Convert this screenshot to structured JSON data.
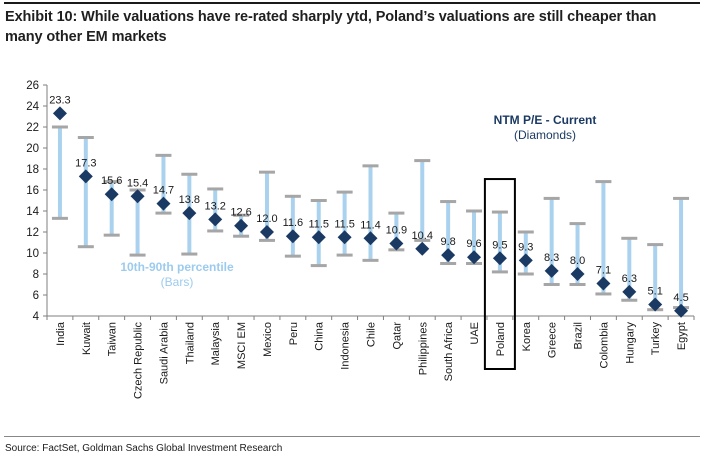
{
  "title": "Exhibit 10: While valuations have re-rated sharply ytd, Poland’s valuations are still cheaper than many other EM markets",
  "source": "Source: FactSet, Goldman Sachs Global Investment Research",
  "colors": {
    "bar": "#aad2ee",
    "cap": "#a6a6a6",
    "diamond": "#1b3a63",
    "highlight_box": "#000000",
    "title": "#1f1f1f"
  },
  "chart_data": {
    "type": "range-bar with markers",
    "ylim": [
      4,
      26
    ],
    "yticks": [
      4,
      6,
      8,
      10,
      12,
      14,
      16,
      18,
      20,
      22,
      24,
      26
    ],
    "grid": false,
    "highlight": "Poland",
    "annotations": {
      "markers_title": "NTM P/E - Current",
      "markers_sub": "(Diamonds)",
      "bars_title": "10th-90th percentile",
      "bars_sub": "(Bars)"
    },
    "categories": [
      "India",
      "Kuwait",
      "Taiwan",
      "Czech Republic",
      "Saudi Arabia",
      "Thailand",
      "Malaysia",
      "MSCI EM",
      "Mexico",
      "Peru",
      "China",
      "Indonesia",
      "Chile",
      "Qatar",
      "Philippines",
      "South Africa",
      "UAE",
      "Poland",
      "Korea",
      "Greece",
      "Brazil",
      "Colombia",
      "Hungary",
      "Turkey",
      "Egypt"
    ],
    "current": [
      23.3,
      17.3,
      15.6,
      15.4,
      14.7,
      13.8,
      13.2,
      12.6,
      12.0,
      11.6,
      11.5,
      11.5,
      11.4,
      10.9,
      10.4,
      9.8,
      9.6,
      9.5,
      9.3,
      8.3,
      8.0,
      7.1,
      6.3,
      5.1,
      4.5
    ],
    "current_labels": [
      "23.3",
      "17.3",
      "15.6",
      "15.4",
      "14.7",
      "13.8",
      "13.2",
      "12.6",
      "12.0",
      "11.6",
      "11.5",
      "11.5",
      "11.4",
      "10.9",
      "10.4",
      "9.8",
      "9.6",
      "9.5",
      "9.3",
      "8.3",
      "8.0",
      "7.1",
      "6.3",
      "5.1",
      "4.5"
    ],
    "p10": [
      13.3,
      10.6,
      11.7,
      9.8,
      13.8,
      9.9,
      12.1,
      11.6,
      11.2,
      9.7,
      8.8,
      9.8,
      9.3,
      10.3,
      11.2,
      9.0,
      9.0,
      8.2,
      8.0,
      7.0,
      7.0,
      6.1,
      5.5,
      4.6,
      4.8
    ],
    "p90": [
      22.0,
      21.0,
      16.8,
      16.0,
      19.3,
      17.5,
      16.1,
      13.6,
      17.7,
      15.4,
      15.0,
      15.8,
      18.3,
      13.8,
      18.8,
      14.9,
      14.0,
      13.9,
      12.0,
      15.2,
      12.8,
      16.8,
      11.4,
      10.8,
      15.2
    ]
  }
}
